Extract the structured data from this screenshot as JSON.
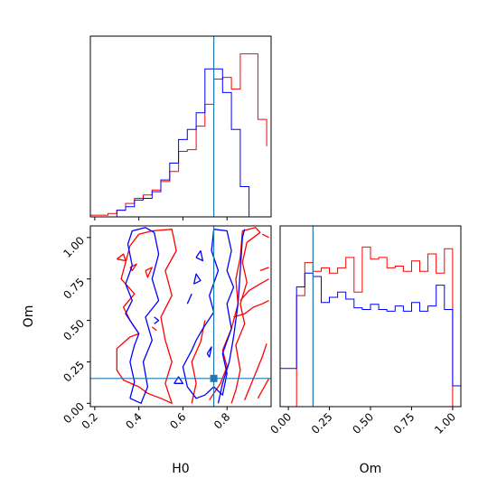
{
  "chart_data": {
    "type": "corner",
    "parameters": [
      "H0",
      "Om"
    ],
    "truths": {
      "H0": 0.74,
      "Om": 0.15
    },
    "colors": {
      "series_a": "#ff0000",
      "series_b": "#0000ff",
      "truth": "#1f77b4"
    },
    "series_colors_named": {
      "series_a": "red",
      "series_b": "blue"
    },
    "panels": [
      {
        "id": "hist-H0",
        "type": "histogram",
        "xlim": [
          0.18,
          1.0
        ],
        "x_ticks": [
          0.2,
          0.4,
          0.6,
          0.8
        ],
        "x_tick_labels_shown": false,
        "y_ticks_shown": false,
        "series": [
          {
            "color_key": "series_a",
            "edges": [
              0.18,
              0.22,
              0.26,
              0.3,
              0.34,
              0.38,
              0.42,
              0.46,
              0.5,
              0.54,
              0.58,
              0.62,
              0.66,
              0.7,
              0.74,
              0.78,
              0.82,
              0.86,
              0.9,
              0.94,
              0.98
            ],
            "heights": [
              0.01,
              0.01,
              0.02,
              0.04,
              0.08,
              0.11,
              0.13,
              0.16,
              0.21,
              0.27,
              0.39,
              0.4,
              0.54,
              0.67,
              0.82,
              0.83,
              0.76,
              0.97,
              0.97,
              0.58,
              0.42
            ]
          },
          {
            "color_key": "series_b",
            "edges": [
              0.3,
              0.34,
              0.38,
              0.42,
              0.46,
              0.5,
              0.54,
              0.58,
              0.62,
              0.66,
              0.7,
              0.74,
              0.78,
              0.82,
              0.86,
              0.9
            ],
            "heights": [
              0.04,
              0.06,
              0.1,
              0.11,
              0.15,
              0.22,
              0.32,
              0.46,
              0.52,
              0.62,
              0.88,
              0.88,
              0.74,
              0.52,
              0.18,
              0.0
            ]
          }
        ]
      },
      {
        "id": "contour-H0-Om",
        "type": "contour",
        "xlabel": "H0",
        "ylabel": "Om",
        "xlim": [
          0.18,
          1.0
        ],
        "ylim": [
          -0.02,
          1.07
        ],
        "x_ticks": [
          0.2,
          0.4,
          0.6,
          0.8
        ],
        "y_ticks": [
          0.0,
          0.25,
          0.5,
          0.75,
          1.0
        ],
        "x_tick_labels": [
          "0.2",
          "0.4",
          "0.6",
          "0.8"
        ],
        "y_tick_labels": [
          "0.00",
          "0.25",
          "0.50",
          "0.75",
          "1.00"
        ],
        "series": [
          {
            "color_key": "series_a",
            "contours": [
              [
                [
                  0.4,
                  1.02
                ],
                [
                  0.46,
                  1.04
                ],
                [
                  0.55,
                  1.05
                ],
                [
                  0.57,
                  0.92
                ],
                [
                  0.52,
                  0.8
                ],
                [
                  0.55,
                  0.65
                ],
                [
                  0.5,
                  0.52
                ],
                [
                  0.52,
                  0.38
                ],
                [
                  0.55,
                  0.25
                ],
                [
                  0.52,
                  0.12
                ],
                [
                  0.55,
                  0.0
                ],
                [
                  0.5,
                  0.03
                ],
                [
                  0.44,
                  0.06
                ],
                [
                  0.4,
                  0.1
                ],
                [
                  0.33,
                  0.14
                ],
                [
                  0.3,
                  0.2
                ],
                [
                  0.3,
                  0.33
                ],
                [
                  0.36,
                  0.4
                ],
                [
                  0.4,
                  0.42
                ],
                [
                  0.36,
                  0.5
                ],
                [
                  0.33,
                  0.58
                ],
                [
                  0.38,
                  0.66
                ],
                [
                  0.32,
                  0.75
                ],
                [
                  0.34,
                  0.85
                ],
                [
                  0.36,
                  0.95
                ],
                [
                  0.4,
                  1.02
                ]
              ],
              [
                [
                  0.72,
                  0.02
                ],
                [
                  0.77,
                  0.12
                ],
                [
                  0.8,
                  0.22
                ],
                [
                  0.78,
                  0.32
                ],
                [
                  0.82,
                  0.45
                ],
                [
                  0.85,
                  0.6
                ],
                [
                  0.84,
                  0.75
                ],
                [
                  0.86,
                  0.88
                ],
                [
                  0.87,
                  1.04
                ],
                [
                  0.93,
                  1.06
                ],
                [
                  0.95,
                  1.03
                ],
                [
                  0.89,
                  0.97
                ],
                [
                  0.87,
                  0.85
                ],
                [
                  0.89,
                  0.73
                ],
                [
                  0.86,
                  0.6
                ],
                [
                  0.88,
                  0.48
                ],
                [
                  0.84,
                  0.35
                ],
                [
                  0.86,
                  0.2
                ],
                [
                  0.84,
                  0.08
                ],
                [
                  0.82,
                  0.0
                ]
              ],
              [
                [
                  0.88,
                  0.02
                ],
                [
                  0.92,
                  0.15
                ],
                [
                  0.96,
                  0.28
                ],
                [
                  0.98,
                  0.36
                ]
              ],
              [
                [
                  0.94,
                  0.03
                ],
                [
                  0.99,
                  0.15
                ]
              ],
              [
                [
                  0.83,
                  0.52
                ],
                [
                  0.88,
                  0.54
                ],
                [
                  0.92,
                  0.58
                ],
                [
                  0.96,
                  0.6
                ],
                [
                  0.99,
                  0.62
                ]
              ],
              [
                [
                  0.86,
                  0.62
                ],
                [
                  0.9,
                  0.68
                ],
                [
                  0.95,
                  0.72
                ],
                [
                  0.99,
                  0.75
                ]
              ],
              [
                [
                  0.95,
                  0.8
                ],
                [
                  0.99,
                  0.82
                ]
              ],
              [
                [
                  0.3,
                  0.87
                ],
                [
                  0.33,
                  0.9
                ],
                [
                  0.34,
                  0.86
                ],
                [
                  0.3,
                  0.87
                ]
              ],
              [
                [
                  0.36,
                  0.82
                ],
                [
                  0.39,
                  0.84
                ],
                [
                  0.37,
                  0.8
                ],
                [
                  0.36,
                  0.82
                ]
              ],
              [
                [
                  0.43,
                  0.8
                ],
                [
                  0.46,
                  0.82
                ],
                [
                  0.44,
                  0.76
                ],
                [
                  0.43,
                  0.8
                ]
              ],
              [
                [
                  0.46,
                  0.46
                ],
                [
                  0.48,
                  0.44
                ]
              ],
              [
                [
                  0.64,
                  0.0
                ],
                [
                  0.66,
                  0.12
                ],
                [
                  0.64,
                  0.25
                ],
                [
                  0.68,
                  0.37
                ],
                [
                  0.7,
                  0.5
                ]
              ],
              [
                [
                  0.96,
                  1.02
                ],
                [
                  0.99,
                  1.0
                ]
              ]
            ]
          },
          {
            "color_key": "series_b",
            "contours": [
              [
                [
                  0.36,
                  0.03
                ],
                [
                  0.38,
                  0.13
                ],
                [
                  0.36,
                  0.25
                ],
                [
                  0.38,
                  0.35
                ],
                [
                  0.4,
                  0.42
                ],
                [
                  0.37,
                  0.48
                ],
                [
                  0.34,
                  0.54
                ],
                [
                  0.37,
                  0.62
                ],
                [
                  0.34,
                  0.72
                ],
                [
                  0.37,
                  0.83
                ],
                [
                  0.35,
                  0.96
                ],
                [
                  0.37,
                  1.04
                ],
                [
                  0.43,
                  1.06
                ],
                [
                  0.47,
                  1.03
                ],
                [
                  0.49,
                  0.9
                ],
                [
                  0.46,
                  0.75
                ],
                [
                  0.49,
                  0.62
                ],
                [
                  0.43,
                  0.52
                ],
                [
                  0.46,
                  0.38
                ],
                [
                  0.42,
                  0.25
                ],
                [
                  0.44,
                  0.1
                ],
                [
                  0.41,
                  0.0
                ],
                [
                  0.36,
                  0.03
                ]
              ],
              [
                [
                  0.64,
                  0.32
                ],
                [
                  0.6,
                  0.22
                ],
                [
                  0.62,
                  0.1
                ],
                [
                  0.66,
                  0.03
                ],
                [
                  0.7,
                  0.05
                ],
                [
                  0.74,
                  0.1
                ],
                [
                  0.78,
                  0.05
                ],
                [
                  0.8,
                  0.18
                ],
                [
                  0.78,
                  0.3
                ],
                [
                  0.82,
                  0.45
                ],
                [
                  0.8,
                  0.6
                ],
                [
                  0.83,
                  0.7
                ],
                [
                  0.8,
                  0.8
                ],
                [
                  0.82,
                  0.92
                ],
                [
                  0.8,
                  1.04
                ],
                [
                  0.74,
                  1.05
                ],
                [
                  0.73,
                  0.92
                ],
                [
                  0.76,
                  0.8
                ],
                [
                  0.72,
                  0.65
                ],
                [
                  0.74,
                  0.55
                ],
                [
                  0.69,
                  0.45
                ],
                [
                  0.66,
                  0.38
                ],
                [
                  0.64,
                  0.32
                ]
              ],
              [
                [
                  0.76,
                  0.0
                ],
                [
                  0.78,
                  0.12
                ],
                [
                  0.81,
                  0.25
                ],
                [
                  0.83,
                  0.4
                ],
                [
                  0.85,
                  0.6
                ],
                [
                  0.86,
                  0.8
                ],
                [
                  0.87,
                  1.0
                ],
                [
                  0.88,
                  1.05
                ]
              ],
              [
                [
                  0.71,
                  0.3
                ],
                [
                  0.73,
                  0.34
                ],
                [
                  0.72,
                  0.28
                ],
                [
                  0.71,
                  0.3
                ]
              ],
              [
                [
                  0.47,
                  0.52
                ],
                [
                  0.49,
                  0.5
                ],
                [
                  0.47,
                  0.48
                ]
              ],
              [
                [
                  0.66,
                  0.88
                ],
                [
                  0.68,
                  0.92
                ],
                [
                  0.69,
                  0.86
                ],
                [
                  0.66,
                  0.88
                ]
              ],
              [
                [
                  0.65,
                  0.72
                ],
                [
                  0.66,
                  0.78
                ],
                [
                  0.68,
                  0.74
                ],
                [
                  0.65,
                  0.72
                ]
              ],
              [
                [
                  0.56,
                  0.12
                ],
                [
                  0.58,
                  0.16
                ],
                [
                  0.6,
                  0.12
                ],
                [
                  0.56,
                  0.12
                ]
              ],
              [
                [
                  0.62,
                  0.6
                ],
                [
                  0.64,
                  0.66
                ]
              ]
            ]
          }
        ],
        "truth_marker": {
          "H0": 0.74,
          "Om": 0.15
        }
      },
      {
        "id": "hist-Om",
        "type": "histogram",
        "xlabel": "Om",
        "xlim": [
          -0.05,
          1.05
        ],
        "x_ticks": [
          0.0,
          0.25,
          0.5,
          0.75,
          1.0
        ],
        "x_tick_labels": [
          "0.00",
          "0.25",
          "0.50",
          "0.75",
          "1.00"
        ],
        "y_ticks_shown": false,
        "series": [
          {
            "color_key": "series_a",
            "edges": [
              0.0,
              0.05,
              0.1,
              0.15,
              0.2,
              0.25,
              0.3,
              0.35,
              0.4,
              0.45,
              0.5,
              0.55,
              0.6,
              0.65,
              0.7,
              0.75,
              0.8,
              0.85,
              0.9,
              0.95,
              1.0
            ],
            "heights": [
              0.0,
              0.64,
              0.83,
              0.78,
              0.8,
              0.77,
              0.8,
              0.86,
              0.66,
              0.92,
              0.85,
              0.86,
              0.8,
              0.81,
              0.78,
              0.84,
              0.78,
              0.88,
              0.77,
              0.91,
              0.0
            ]
          },
          {
            "color_key": "series_b",
            "edges": [
              -0.05,
              0.0,
              0.05,
              0.1,
              0.15,
              0.2,
              0.25,
              0.3,
              0.35,
              0.4,
              0.45,
              0.5,
              0.55,
              0.6,
              0.65,
              0.7,
              0.75,
              0.8,
              0.85,
              0.9,
              0.95,
              1.0,
              1.05
            ],
            "heights": [
              0.22,
              0.22,
              0.69,
              0.77,
              0.75,
              0.6,
              0.63,
              0.66,
              0.62,
              0.57,
              0.56,
              0.59,
              0.56,
              0.55,
              0.58,
              0.55,
              0.6,
              0.55,
              0.58,
              0.7,
              0.56,
              0.12
            ]
          }
        ],
        "truth_line": 0.15
      }
    ]
  }
}
